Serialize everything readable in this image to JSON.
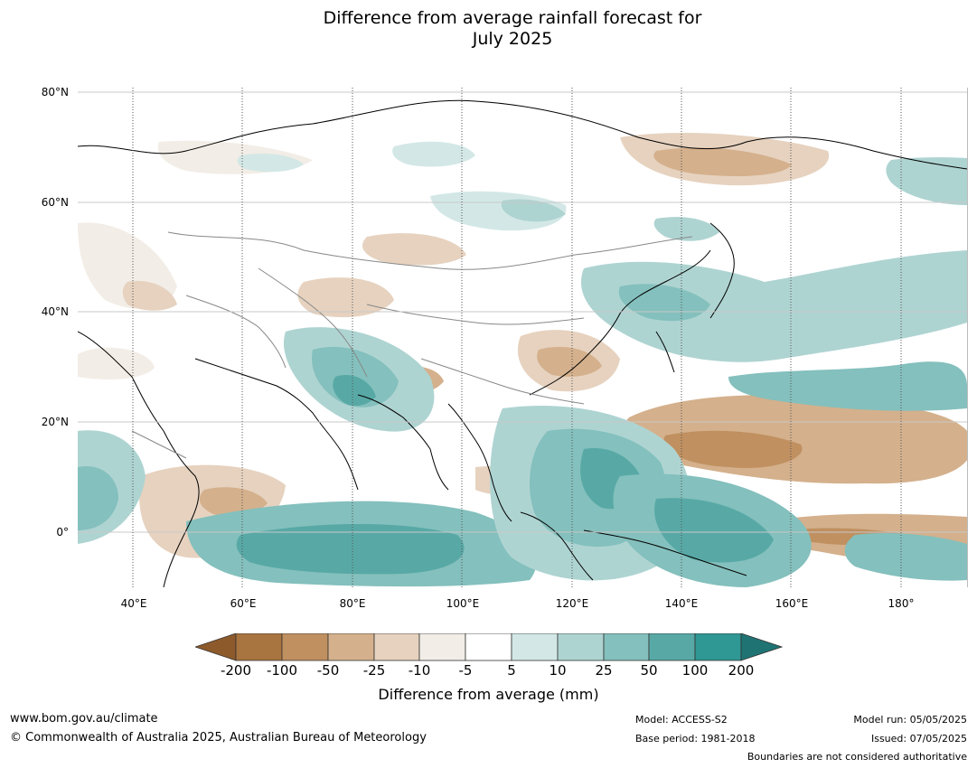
{
  "title": {
    "line1": "Difference from average rainfall forecast for",
    "line2": "July 2025"
  },
  "map": {
    "lat_labels": [
      "80°N",
      "60°N",
      "40°N",
      "20°N",
      "0°"
    ],
    "lon_labels": [
      "40°E",
      "60°E",
      "80°E",
      "100°E",
      "120°E",
      "140°E",
      "160°E",
      "180°"
    ],
    "lon_range": [
      30,
      192
    ],
    "lat_range": [
      -10,
      81
    ]
  },
  "legend": {
    "tick_labels": [
      "-200",
      "-100",
      "-50",
      "-25",
      "-10",
      "-5",
      "5",
      "10",
      "25",
      "50",
      "100",
      "200"
    ],
    "colors": [
      "#8c5a2b",
      "#a8743f",
      "#c09060",
      "#d4b08c",
      "#e6d2bf",
      "#f2ede6",
      "#ffffff",
      "#d3e8e6",
      "#aed4d2",
      "#84c0bd",
      "#58a9a6",
      "#2f9794",
      "#1f7473"
    ],
    "label": "Difference from average (mm)"
  },
  "footer": {
    "website": "www.bom.gov.au/climate",
    "copyright": "© Commonwealth of Australia 2025, Australian Bureau of Meteorology",
    "model": "Model: ACCESS-S2",
    "base_period": "Base period: 1981-2018",
    "model_run": "Model run: 05/05/2025",
    "issued": "Issued: 07/05/2025",
    "boundaries_note": "Boundaries are not considered authoritative"
  }
}
